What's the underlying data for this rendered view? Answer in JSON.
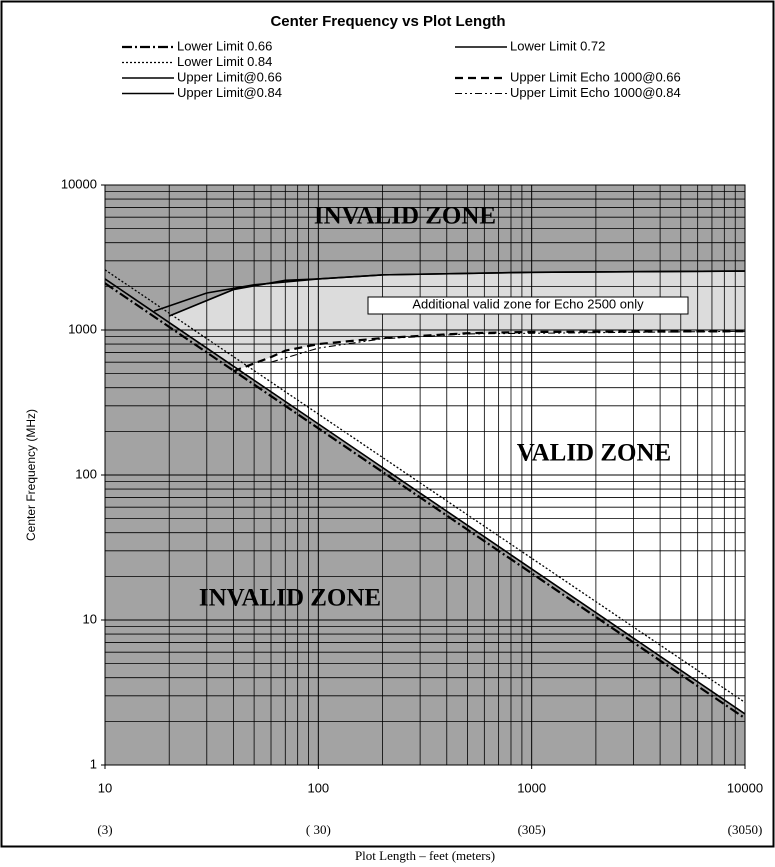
{
  "chart_data": {
    "type": "line",
    "title": "Center Frequency vs Plot Length",
    "x_label": "Plot Length – feet (meters)",
    "y_label": "Center Frequency (MHz)",
    "log_x": true,
    "log_y": true,
    "grid": true,
    "xlim": [
      10,
      10000
    ],
    "ylim": [
      1,
      10000
    ],
    "xticks": [
      10,
      100,
      1000,
      10000
    ],
    "yticks": [
      1,
      10,
      100,
      1000,
      10000
    ],
    "x2_labels": [
      "(3)",
      "( 30)",
      "(305)",
      "(3050)"
    ],
    "annotations": [
      "INVALID ZONE",
      "Additional valid zone for Echo 2500 only",
      "VALID ZONE",
      "INVALID ZONE"
    ],
    "series": [
      {
        "name": "Lower Limit 0.66",
        "color": "#000000",
        "style": "dashdot",
        "x": [
          10,
          10000
        ],
        "y": [
          2100,
          2.1
        ]
      },
      {
        "name": "Lower Limit 0.72",
        "color": "#000000",
        "style": "solid",
        "x": [
          10,
          10000
        ],
        "y": [
          2250,
          2.25
        ]
      },
      {
        "name": "Lower Limit 0.84",
        "color": "#000000",
        "style": "dotted",
        "x": [
          10,
          10000
        ],
        "y": [
          2600,
          2.7
        ]
      },
      {
        "name": "Upper Limit@0.66",
        "color": "#000000",
        "style": "solid",
        "x": [
          20,
          40,
          70,
          100,
          200,
          1000,
          10000
        ],
        "y": [
          1250,
          1900,
          2200,
          2250,
          2400,
          2500,
          2550
        ]
      },
      {
        "name": "Upper Limit@0.84",
        "color": "#000000",
        "style": "solid",
        "x": [
          17,
          30,
          50,
          100,
          200,
          1000,
          10000
        ],
        "y": [
          1350,
          1800,
          2050,
          2250,
          2400,
          2500,
          2550
        ]
      },
      {
        "name": "Upper Limit Echo 1000@0.66",
        "color": "#000000",
        "style": "dashed",
        "x": [
          40,
          60,
          70,
          100,
          200,
          500,
          1000,
          10000
        ],
        "y": [
          520,
          650,
          720,
          800,
          880,
          950,
          970,
          980
        ]
      },
      {
        "name": "Upper Limit Echo 1000@0.84",
        "color": "#000000",
        "style": "dashdotdot",
        "x": [
          60,
          100,
          200,
          500,
          10000
        ],
        "y": [
          600,
          750,
          870,
          940,
          980
        ]
      }
    ]
  }
}
